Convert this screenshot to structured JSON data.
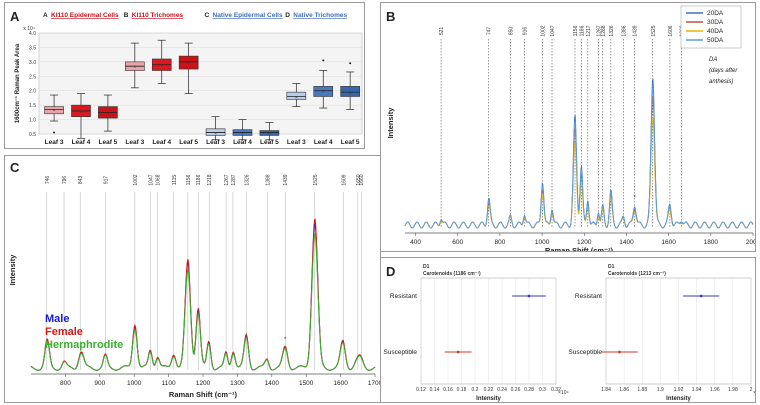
{
  "panels": {
    "A": {
      "label": "A"
    },
    "B": {
      "label": "B"
    },
    "C": {
      "label": "C"
    },
    "D": {
      "label": "D"
    }
  },
  "chart_data": [
    {
      "id": "A",
      "type": "box",
      "ylabel": "1600cm⁻¹ Raman Peak Area",
      "y_multiplier": "x 10⁴",
      "ylim": [
        0.5,
        4.0
      ],
      "yticks": [
        "0.5",
        "1.0",
        "1.5",
        "2.0",
        "2.5",
        "3.0",
        "3.5",
        "4.0"
      ],
      "groups": [
        {
          "letter": "A",
          "name": "KI110 Epidermal Cells",
          "color": "#c0151c",
          "fill": [
            "#e8a4a6",
            "#d9191f",
            "#c81418"
          ],
          "categories": [
            "Leaf 3",
            "Leaf 4",
            "Leaf 5"
          ],
          "boxes": [
            [
              0.95,
              1.2,
              1.35,
              1.45,
              1.85
            ],
            [
              0.35,
              1.1,
              1.3,
              1.5,
              1.9
            ],
            [
              0.6,
              1.05,
              1.25,
              1.45,
              1.85
            ]
          ],
          "outliers": [
            [
              0.55
            ],
            [],
            []
          ]
        },
        {
          "letter": "B",
          "name": "KI110 Trichomes",
          "color": "#c0151c",
          "fill": [
            "#e8a4a6",
            "#d9191f",
            "#c81418"
          ],
          "categories": [
            "Leaf 3",
            "Leaf 4",
            "Leaf 5"
          ],
          "boxes": [
            [
              2.1,
              2.7,
              2.85,
              3.0,
              3.65
            ],
            [
              2.25,
              2.7,
              2.9,
              3.1,
              3.75
            ],
            [
              1.9,
              2.75,
              3.0,
              3.2,
              3.65
            ]
          ],
          "outliers": [
            [],
            [],
            []
          ]
        },
        {
          "letter": "C",
          "name": "Native Epidermal Cells",
          "color": "#3f6fb5",
          "fill": [
            "#b9cbe6",
            "#4a78bd",
            "#3a66a8"
          ],
          "categories": [
            "Leaf 3",
            "Leaf 4",
            "Leaf 5"
          ],
          "boxes": [
            [
              0.3,
              0.45,
              0.55,
              0.68,
              1.1
            ],
            [
              0.3,
              0.45,
              0.55,
              0.65,
              1.0
            ],
            [
              0.3,
              0.45,
              0.55,
              0.62,
              0.9
            ]
          ],
          "outliers": [
            [],
            [],
            []
          ]
        },
        {
          "letter": "D",
          "name": "Native Trichomes",
          "color": "#3f6fb5",
          "fill": [
            "#b9cbe6",
            "#4a78bd",
            "#3a66a8"
          ],
          "categories": [
            "Leaf 3",
            "Leaf 4",
            "Leaf 5"
          ],
          "boxes": [
            [
              1.45,
              1.7,
              1.8,
              1.95,
              2.25
            ],
            [
              1.4,
              1.8,
              2.0,
              2.15,
              2.7
            ],
            [
              1.35,
              1.8,
              1.95,
              2.15,
              2.65
            ]
          ],
          "outliers": [
            [],
            [
              3.05
            ],
            [
              2.95
            ]
          ]
        }
      ]
    },
    {
      "id": "B",
      "type": "line",
      "xlabel": "Raman Shift (cm⁻¹)",
      "ylabel": "Intensity",
      "xlim": [
        350,
        2000
      ],
      "xticks": [
        "400",
        "600",
        "800",
        "1000",
        "1200",
        "1400",
        "1600",
        "1800",
        "2000"
      ],
      "peaks": [
        "521",
        "747",
        "850",
        "916",
        "1002",
        "1047",
        "1156",
        "1186",
        "1217",
        "1267",
        "1288",
        "1326",
        "1386",
        "1439",
        "1525",
        "1606",
        "1660"
      ],
      "annotation": "DA (days after anthesis)",
      "star_at": 1439,
      "series": [
        {
          "name": "20DA",
          "color": "#4472c4",
          "scale": 1.0
        },
        {
          "name": "30DA",
          "color": "#c0504d",
          "scale": 0.88
        },
        {
          "name": "40DA",
          "color": "#f0b400",
          "scale": 0.74
        },
        {
          "name": "50DA",
          "color": "#5aa0d8",
          "scale": 0.94
        }
      ]
    },
    {
      "id": "C",
      "type": "line",
      "xlabel": "Raman Shift (cm⁻¹)",
      "ylabel": "Intensity",
      "xlim": [
        700,
        1700
      ],
      "xticks": [
        "800",
        "900",
        "1000",
        "1100",
        "1200",
        "1300",
        "1400",
        "1500",
        "1600",
        "1700"
      ],
      "peaks": [
        "746",
        "796",
        "843",
        "917",
        "1002",
        "1047",
        "1068",
        "1115",
        "1156",
        "1186",
        "1218",
        "1267",
        "1287",
        "1326",
        "1388",
        "1439",
        "1525",
        "1609",
        "1650",
        "1660"
      ],
      "star_at": 1439,
      "series": [
        {
          "name": "Male",
          "color": "#1a1ad0",
          "scale": 0.97
        },
        {
          "name": "Female",
          "color": "#d01a1a",
          "scale": 1.0
        },
        {
          "name": "Hermaphrodite",
          "color": "#3cb030",
          "scale": 0.9
        }
      ]
    },
    {
      "id": "D",
      "type": "dot-errorbar",
      "subplots": [
        {
          "title": "D1",
          "subtitle": "Carotenoids (1186 cm⁻¹)",
          "xlabel": "Intensity",
          "categories": [
            "Resistant",
            "Susceptible"
          ],
          "values": [
            0.28,
            0.175
          ],
          "errors": [
            0.025,
            0.02
          ],
          "xlim": [
            0.12,
            0.32
          ],
          "xticks": [
            "0.12",
            "0.14",
            "0.16",
            "0.18",
            "0.2",
            "0.22",
            "0.24",
            "0.26",
            "0.28",
            "0.3",
            "0.32"
          ],
          "multiplier": "×10⁴"
        },
        {
          "title": "D1",
          "subtitle": "Carotenoids (1213 cm⁻¹)",
          "xlabel": "Intensity",
          "categories": [
            "Resistant",
            "Susceptible"
          ],
          "values": [
            1.945,
            1.855
          ],
          "errors": [
            0.02,
            0.02
          ],
          "xlim": [
            1.84,
            2.0
          ],
          "xticks": [
            "1.84",
            "1.86",
            "1.88",
            "1.9",
            "1.92",
            "1.94",
            "1.96",
            "1.98",
            "2"
          ],
          "multiplier": "×10³"
        }
      ]
    }
  ]
}
